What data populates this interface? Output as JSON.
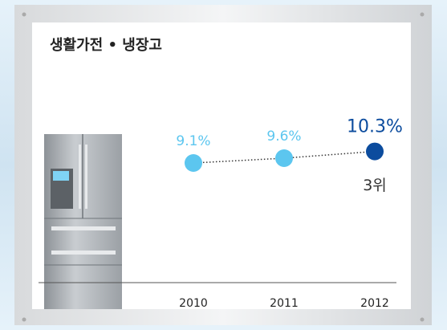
{
  "chart_data": {
    "type": "line",
    "title": "생활가전 • 냉장고",
    "categories": [
      "2010",
      "2011",
      "2012"
    ],
    "values": [
      9.1,
      9.6,
      10.3
    ],
    "value_labels": [
      "9.1%",
      "9.6%",
      "10.3%"
    ],
    "point_colors": [
      "#5cc6ef",
      "#5cc6ef",
      "#0c4c9e"
    ],
    "line_color": "#333333",
    "annotation": "3위"
  }
}
